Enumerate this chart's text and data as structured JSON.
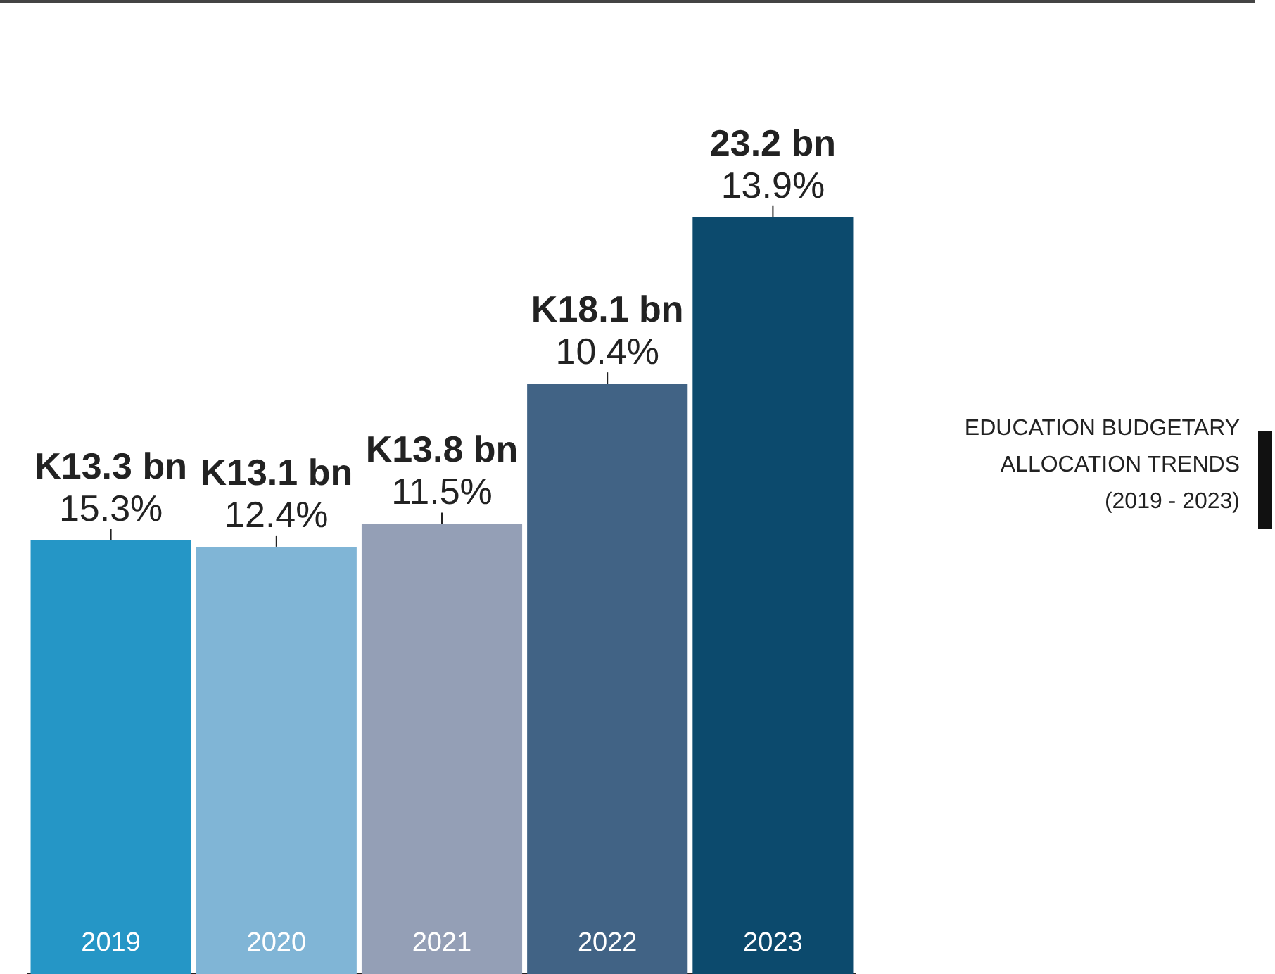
{
  "chart_data": {
    "type": "bar",
    "title": "EDUCATION BUDGETARY ALLOCATION TRENDS (2019 - 2023)",
    "categories": [
      "2019",
      "2020",
      "2021",
      "2022",
      "2023"
    ],
    "values": [
      13.3,
      13.1,
      13.8,
      18.1,
      23.2
    ],
    "colors": [
      "#2596c6",
      "#80b5d6",
      "#949fb6",
      "#416385",
      "#0c4a6d"
    ],
    "value_labels": [
      "K13.3 bn",
      "K13.1 bn",
      "K13.8 bn",
      "K18.1 bn",
      "23.2 bn"
    ],
    "annotations": [
      {
        "text": "15.3%",
        "x": "2019",
        "y": 13.3
      },
      {
        "text": "12.4%",
        "x": "2020",
        "y": 13.1
      },
      {
        "text": "11.5%",
        "x": "2021",
        "y": 13.8
      },
      {
        "text": "10.4%",
        "x": "2022",
        "y": 18.1
      },
      {
        "text": "13.9%",
        "x": "2023",
        "y": 23.2
      }
    ],
    "grid": false,
    "legend": false
  }
}
